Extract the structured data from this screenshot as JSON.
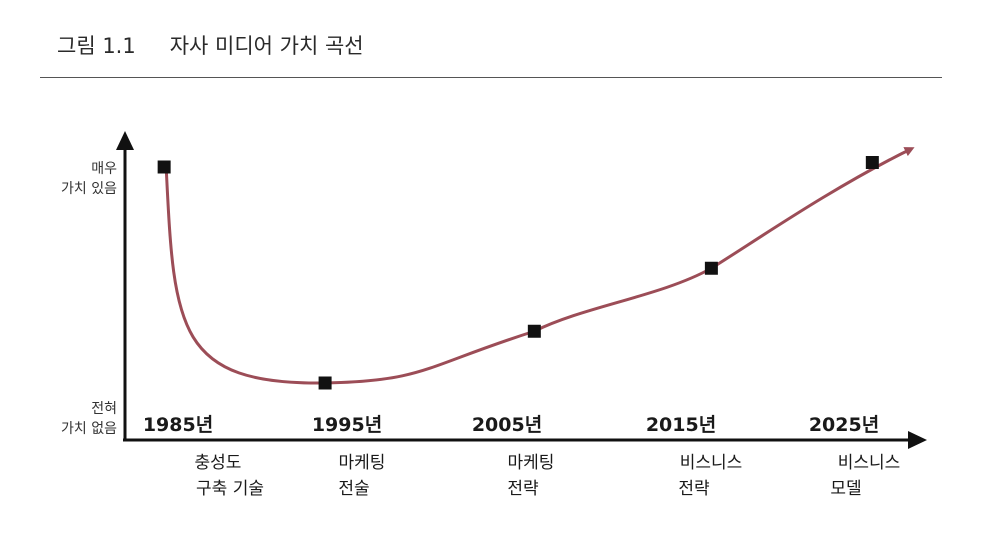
{
  "figure": {
    "number": "그림 1.1",
    "title": "자사 미디어 가치 곡선"
  },
  "chart_data": {
    "type": "line",
    "y_axis": {
      "top_label": [
        "매우",
        "가치 있음"
      ],
      "bottom_label": [
        "전혀",
        "가치 없음"
      ],
      "range": [
        0,
        100
      ]
    },
    "categories": [
      "1985년",
      "1995년",
      "2005년",
      "2015년",
      "2025년"
    ],
    "descriptions": [
      [
        "충성도",
        "구축 기술"
      ],
      [
        "마케팅",
        "전술"
      ],
      [
        "마케팅",
        "전략"
      ],
      [
        "비스니스",
        "전략"
      ],
      [
        "비스니스",
        "모델"
      ]
    ],
    "points": [
      {
        "year": 1985,
        "value": 96
      },
      {
        "year": 1995,
        "value": 0
      },
      {
        "year": 2008,
        "value": 23
      },
      {
        "year": 2019,
        "value": 51
      },
      {
        "year": 2029,
        "value": 98
      }
    ],
    "x_range": [
      1983.5,
      2036
    ],
    "curve_color": "#9c4d57",
    "marker_color": "#111111"
  }
}
